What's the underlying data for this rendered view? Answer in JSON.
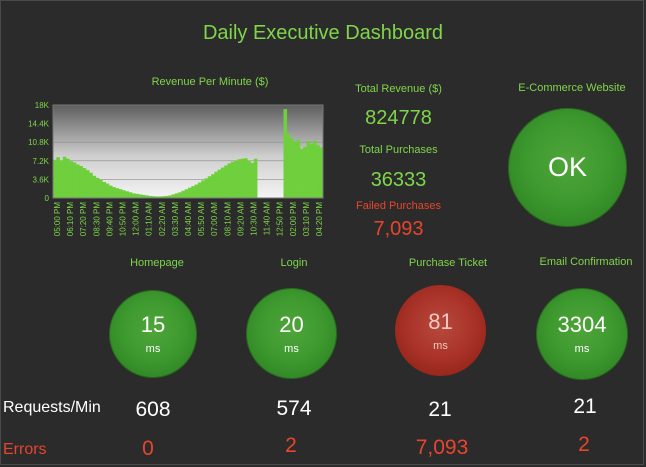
{
  "dashboard": {
    "title": "Daily Executive Dashboard"
  },
  "chart_data": {
    "type": "area",
    "title": "Revenue Per Minute ($)",
    "xlabel": "",
    "ylabel": "",
    "ylim": [
      0,
      18000
    ],
    "y_ticks": [
      "0",
      "3.6K",
      "7.2K",
      "10.8K",
      "14.4K",
      "18K"
    ],
    "x_tick_labels": [
      "05:00 PM",
      "06:10 PM",
      "07:20 PM",
      "08:30 PM",
      "09:40 PM",
      "10:50 PM",
      "12:00 AM",
      "01:10 AM",
      "02:20 AM",
      "03:30 AM",
      "04:40 AM",
      "05:50 AM",
      "07:00 AM",
      "08:10 AM",
      "09:20 AM",
      "10:30 AM",
      "11:40 AM",
      "12:50 PM",
      "02:00 PM",
      "03:10 PM",
      "04:20 PM"
    ],
    "series": [
      {
        "name": "Revenue",
        "values": [
          7400,
          7900,
          7300,
          8000,
          7600,
          7100,
          6900,
          6500,
          6200,
          5800,
          5400,
          4900,
          4300,
          3900,
          3500,
          3100,
          2800,
          2400,
          2100,
          1900,
          1700,
          1500,
          1300,
          1100,
          900,
          800,
          700,
          600,
          500,
          400,
          350,
          300,
          300,
          350,
          400,
          500,
          700,
          900,
          1100,
          1400,
          1700,
          2000,
          2300,
          2600,
          3000,
          3400,
          3800,
          4200,
          4600,
          5100,
          5500,
          5900,
          6300,
          6700,
          7000,
          7300,
          7500,
          7600,
          7700,
          7200,
          6800,
          7600,
          0,
          0,
          0,
          0,
          0,
          0,
          0,
          0,
          17200,
          12500,
          11600,
          10800,
          11300,
          9500,
          9900,
          11000,
          10500,
          11100,
          10200,
          9800
        ]
      }
    ]
  },
  "kpis": {
    "total_revenue_label": "Total Revenue ($)",
    "total_revenue_value": "824778",
    "total_purchases_label": "Total Purchases",
    "total_purchases_value": "36333",
    "failed_purchases_label": "Failed Purchases",
    "failed_purchases_value": "7,093"
  },
  "website": {
    "label": "E-Commerce Website",
    "status": "OK"
  },
  "metrics": [
    {
      "label": "Homepage",
      "value": "15",
      "unit": "ms",
      "requests": "608",
      "errors": "0",
      "status_color": "green"
    },
    {
      "label": "Login",
      "value": "20",
      "unit": "ms",
      "requests": "574",
      "errors": "2",
      "status_color": "green"
    },
    {
      "label": "Purchase Ticket",
      "value": "81",
      "unit": "ms",
      "requests": "21",
      "errors": "7,093",
      "status_color": "red"
    },
    {
      "label": "Email Confirmation",
      "value": "3304",
      "unit": "ms",
      "requests": "21",
      "errors": "2",
      "status_color": "green"
    }
  ],
  "row_labels": {
    "requests": "Requests/Min",
    "errors": "Errors"
  },
  "colors": {
    "accent_green": "#7fd64a",
    "alert_red": "#e8452c",
    "orb_green": "#3e9a2f",
    "orb_red": "#ab342a"
  }
}
